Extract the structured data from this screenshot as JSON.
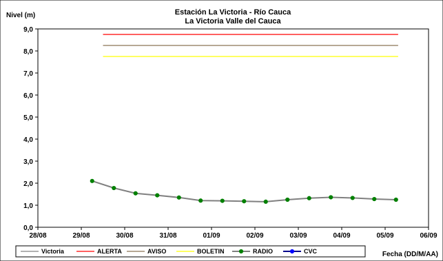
{
  "chart_data": {
    "type": "line",
    "title": "Estación La Victoria - Río Cauca",
    "subtitle": "La Victoria Valle del Cauca",
    "ylabel": "Nivel (m)",
    "xlabel": "Fecha (DD/M/AA)",
    "ylim": [
      0,
      9
    ],
    "yticks": [
      "0,0",
      "1,0",
      "2,0",
      "3,0",
      "4,0",
      "5,0",
      "6,0",
      "7,0",
      "8,0",
      "9,0"
    ],
    "xlim": [
      0,
      9
    ],
    "xticks": [
      "28/08",
      "29/08",
      "30/08",
      "31/08",
      "01/09",
      "02/09",
      "03/09",
      "04/09",
      "05/09",
      "06/09"
    ],
    "grid": false,
    "legend_position": "bottom",
    "series": [
      {
        "name": "Victoria",
        "color": "#808080",
        "marker": "none",
        "x": [],
        "y": []
      },
      {
        "name": "ALERTA",
        "color": "#ff0000",
        "marker": "none",
        "x": [
          1.5,
          8.3
        ],
        "y": [
          8.75,
          8.75
        ]
      },
      {
        "name": "AVISO",
        "color": "#8b7355",
        "marker": "none",
        "x": [
          1.5,
          8.3
        ],
        "y": [
          8.25,
          8.25
        ]
      },
      {
        "name": "BOLETIN",
        "color": "#ffff00",
        "marker": "none",
        "x": [
          1.5,
          8.3
        ],
        "y": [
          7.75,
          7.75
        ]
      },
      {
        "name": "RADIO",
        "color": "#808080",
        "marker": "circle",
        "marker_color": "#008000",
        "x": [
          1.25,
          1.75,
          2.25,
          2.75,
          3.25,
          3.75,
          4.25,
          4.75,
          5.25,
          5.75,
          6.25,
          6.75,
          7.25,
          7.75,
          8.25
        ],
        "y": [
          2.1,
          1.78,
          1.54,
          1.45,
          1.35,
          1.21,
          1.2,
          1.18,
          1.16,
          1.25,
          1.32,
          1.36,
          1.33,
          1.28,
          1.25
        ]
      },
      {
        "name": "CVC",
        "color": "#00008b",
        "marker": "circle",
        "marker_color": "#0000ff",
        "x": [],
        "y": []
      }
    ]
  }
}
